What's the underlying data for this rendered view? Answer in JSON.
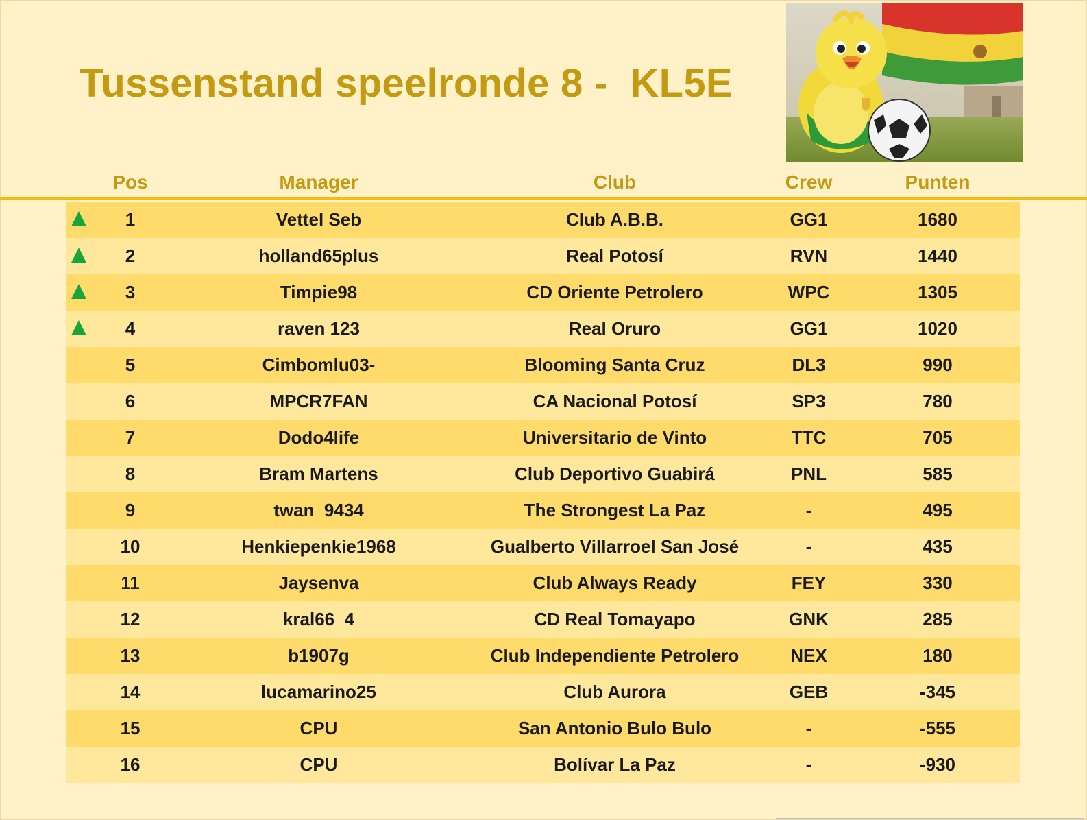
{
  "title": "Tussenstand speelronde 8 -  KL5E",
  "image": {
    "description_icon": "canary-mascot-with-football-and-bolivian-flag"
  },
  "columns": {
    "pos": "Pos",
    "manager": "Manager",
    "club": "Club",
    "crew": "Crew",
    "points": "Punten"
  },
  "colors": {
    "title": "#c39a12",
    "accent_rule": "#f2bd12",
    "row_odd": "#ffdb6c",
    "row_even": "#ffe89c",
    "up_arrow": "#1aa53a",
    "background": "#fff2c8"
  },
  "rows": [
    {
      "up": true,
      "pos": "1",
      "manager": "Vettel Seb",
      "club": "Club A.B.B.",
      "crew": "GG1",
      "points": "1680"
    },
    {
      "up": true,
      "pos": "2",
      "manager": "holland65plus",
      "club": "Real Potosí",
      "crew": "RVN",
      "points": "1440"
    },
    {
      "up": true,
      "pos": "3",
      "manager": "Timpie98",
      "club": "CD Oriente Petrolero",
      "crew": "WPC",
      "points": "1305"
    },
    {
      "up": true,
      "pos": "4",
      "manager": "raven 123",
      "club": "Real Oruro",
      "crew": "GG1",
      "points": "1020"
    },
    {
      "up": false,
      "pos": "5",
      "manager": "Cimbomlu03-",
      "club": "Blooming Santa Cruz",
      "crew": "DL3",
      "points": "990"
    },
    {
      "up": false,
      "pos": "6",
      "manager": "MPCR7FAN",
      "club": "CA Nacional Potosí",
      "crew": "SP3",
      "points": "780"
    },
    {
      "up": false,
      "pos": "7",
      "manager": "Dodo4life",
      "club": "Universitario de Vinto",
      "crew": "TTC",
      "points": "705"
    },
    {
      "up": false,
      "pos": "8",
      "manager": "Bram Martens",
      "club": "Club Deportivo Guabirá",
      "crew": "PNL",
      "points": "585"
    },
    {
      "up": false,
      "pos": "9",
      "manager": "twan_9434",
      "club": "The Strongest La Paz",
      "crew": "-",
      "points": "495"
    },
    {
      "up": false,
      "pos": "10",
      "manager": "Henkiepenkie1968",
      "club": "Gualberto Villarroel San José",
      "crew": "-",
      "points": "435"
    },
    {
      "up": false,
      "pos": "11",
      "manager": "Jaysenva",
      "club": "Club Always Ready",
      "crew": "FEY",
      "points": "330"
    },
    {
      "up": false,
      "pos": "12",
      "manager": "kral66_4",
      "club": "CD Real Tomayapo",
      "crew": "GNK",
      "points": "285"
    },
    {
      "up": false,
      "pos": "13",
      "manager": "b1907g",
      "club": "Club Independiente Petrolero",
      "crew": "NEX",
      "points": "180"
    },
    {
      "up": false,
      "pos": "14",
      "manager": "lucamarino25",
      "club": "Club Aurora",
      "crew": "GEB",
      "points": "-345"
    },
    {
      "up": false,
      "pos": "15",
      "manager": "CPU",
      "club": "San Antonio Bulo Bulo",
      "crew": "-",
      "points": "-555"
    },
    {
      "up": false,
      "pos": "16",
      "manager": "CPU",
      "club": "Bolívar La Paz",
      "crew": "-",
      "points": "-930"
    }
  ]
}
